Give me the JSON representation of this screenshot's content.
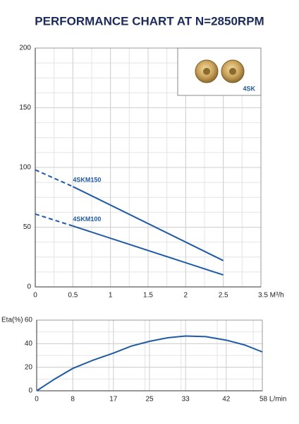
{
  "title": "PERFORMANCE CHART AT N=2850RPM",
  "chart_data": [
    {
      "type": "line",
      "x_end_label": "3.5 M³/h",
      "xlim": [
        0,
        3
      ],
      "ylim": [
        0,
        200
      ],
      "xticks": [
        0,
        0.5,
        1,
        1.5,
        2,
        2.5
      ],
      "yticks": [
        0,
        50,
        100,
        150,
        200
      ],
      "grid": true,
      "dashed_first_segment": true,
      "series": [
        {
          "name": "4SKM150",
          "color": "#1f5aa6",
          "x": [
            0,
            0.5,
            2.5
          ],
          "values": [
            98,
            84,
            22
          ]
        },
        {
          "name": "4SKM100",
          "color": "#1f5aa6",
          "x": [
            0,
            0.5,
            2.5
          ],
          "values": [
            61,
            51,
            10
          ]
        }
      ]
    },
    {
      "type": "line",
      "y_label": "Eta(%)",
      "x_end_label": "58 L/min",
      "xlim": [
        0,
        50
      ],
      "ylim": [
        0,
        60
      ],
      "xticks": [
        0,
        8,
        17,
        25,
        33,
        42
      ],
      "yticks": [
        0,
        20,
        40,
        60
      ],
      "grid": true,
      "dashed_first_segment": false,
      "series": [
        {
          "color": "#1f5aa6",
          "x": [
            0,
            4,
            8,
            12.5,
            17,
            21,
            25,
            29,
            33,
            37.5,
            42,
            46,
            50
          ],
          "values": [
            0,
            10,
            19,
            26,
            32,
            38,
            42,
            45,
            46.5,
            46,
            43,
            39,
            33
          ]
        }
      ]
    }
  ],
  "inset": {
    "label": "4SK"
  }
}
